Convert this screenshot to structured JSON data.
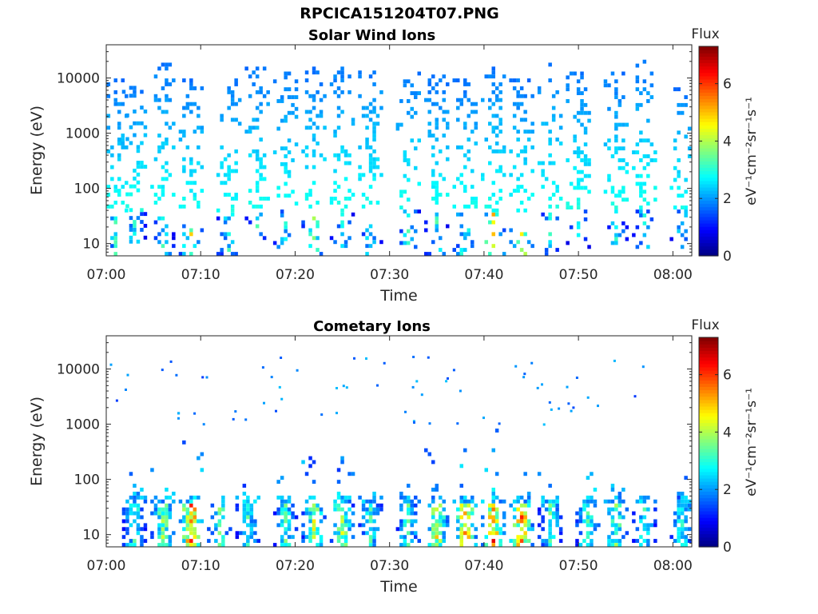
{
  "figure": {
    "filename_title": "RPCICA151204T07.PNG"
  },
  "colorbar": {
    "label": "Flux",
    "unit": "eV⁻¹cm⁻²sr⁻¹s⁻¹",
    "ticks": [
      "0",
      "2",
      "4",
      "6"
    ],
    "range": [
      0,
      7.3
    ],
    "colormap": "jet"
  },
  "chart_data": [
    {
      "type": "heatmap",
      "title": "Solar Wind Ions",
      "xlabel": "Time",
      "ylabel": "Energy (eV)",
      "x_ticks": [
        "07:00",
        "07:10",
        "07:20",
        "07:30",
        "07:40",
        "07:50",
        "08:00"
      ],
      "x_range": [
        "07:00",
        "08:02"
      ],
      "y_ticks": [
        "10",
        "100",
        "1000",
        "10000"
      ],
      "y_scale": "log",
      "y_range": [
        6,
        40000
      ],
      "z_label": "Flux",
      "z_range": [
        0,
        7.3
      ],
      "description_of_data": "sparse speckled counts between ~6 eV and ~20000 eV, mostly in vertical bursts; values 2-3 typical, higher (4-6) near 10-30 eV at 07:09, 07:40-07:42, 07:44",
      "bursts": [
        {
          "time": "07:01",
          "emin": 6,
          "emax": 9000,
          "peak": 3.4
        },
        {
          "time": "07:03",
          "emin": 10,
          "emax": 7000,
          "peak": 3.2
        },
        {
          "time": "07:06",
          "emin": 6,
          "emax": 18000,
          "peak": 3.3
        },
        {
          "time": "07:09",
          "emin": 6,
          "emax": 9000,
          "peak": 5.0
        },
        {
          "time": "07:13",
          "emin": 6,
          "emax": 10000,
          "peak": 3.5
        },
        {
          "time": "07:16",
          "emin": 6,
          "emax": 15000,
          "peak": 3.4
        },
        {
          "time": "07:19",
          "emin": 8,
          "emax": 12000,
          "peak": 3.2
        },
        {
          "time": "07:22",
          "emin": 6,
          "emax": 14000,
          "peak": 4.2
        },
        {
          "time": "07:25",
          "emin": 6,
          "emax": 20000,
          "peak": 3.5
        },
        {
          "time": "07:28",
          "emin": 6,
          "emax": 16000,
          "peak": 3.3
        },
        {
          "time": "07:32",
          "emin": 8,
          "emax": 12000,
          "peak": 3.4
        },
        {
          "time": "07:35",
          "emin": 6,
          "emax": 10000,
          "peak": 3.5
        },
        {
          "time": "07:38",
          "emin": 6,
          "emax": 9000,
          "peak": 3.8
        },
        {
          "time": "07:41",
          "emin": 6,
          "emax": 15000,
          "peak": 5.8
        },
        {
          "time": "07:44",
          "emin": 6,
          "emax": 10000,
          "peak": 5.2
        },
        {
          "time": "07:47",
          "emin": 6,
          "emax": 17000,
          "peak": 3.2
        },
        {
          "time": "07:50",
          "emin": 8,
          "emax": 15000,
          "peak": 3.0
        },
        {
          "time": "07:54",
          "emin": 8,
          "emax": 12000,
          "peak": 3.2
        },
        {
          "time": "07:57",
          "emin": 8,
          "emax": 20000,
          "peak": 3.1
        },
        {
          "time": "08:01",
          "emin": 8,
          "emax": 6000,
          "peak": 3.2
        }
      ]
    },
    {
      "type": "heatmap",
      "title": "Cometary Ions",
      "xlabel": "Time",
      "ylabel": "Energy (eV)",
      "x_ticks": [
        "07:00",
        "07:10",
        "07:20",
        "07:30",
        "07:40",
        "07:50",
        "08:00"
      ],
      "x_range": [
        "07:00",
        "08:02"
      ],
      "y_ticks": [
        "10",
        "100",
        "1000",
        "10000"
      ],
      "y_scale": "log",
      "y_range": [
        6,
        40000
      ],
      "z_label": "Flux",
      "z_range": [
        0,
        7.3
      ],
      "description_of_data": "low energy (<50 eV) intense vertical bursts (peak 6-7 at 07:09, 07:38, 07:41, 07:44), scattered blue points 100-1000 eV, sparse dots above 1000 eV",
      "bursts": [
        {
          "time": "07:03",
          "emin": 6,
          "emax": 300,
          "peak": 3.8
        },
        {
          "time": "07:06",
          "emin": 6,
          "emax": 250,
          "peak": 4.6
        },
        {
          "time": "07:09",
          "emin": 6,
          "emax": 500,
          "peak": 6.8
        },
        {
          "time": "07:12",
          "emin": 6,
          "emax": 150,
          "peak": 4.2
        },
        {
          "time": "07:15",
          "emin": 6,
          "emax": 120,
          "peak": 3.6
        },
        {
          "time": "07:19",
          "emin": 6,
          "emax": 200,
          "peak": 3.8
        },
        {
          "time": "07:22",
          "emin": 6,
          "emax": 250,
          "peak": 4.8
        },
        {
          "time": "07:25",
          "emin": 6,
          "emax": 300,
          "peak": 5.0
        },
        {
          "time": "07:28",
          "emin": 6,
          "emax": 200,
          "peak": 3.6
        },
        {
          "time": "07:32",
          "emin": 6,
          "emax": 150,
          "peak": 3.8
        },
        {
          "time": "07:35",
          "emin": 6,
          "emax": 400,
          "peak": 5.2
        },
        {
          "time": "07:38",
          "emin": 6,
          "emax": 500,
          "peak": 6.4
        },
        {
          "time": "07:41",
          "emin": 6,
          "emax": 800,
          "peak": 6.6
        },
        {
          "time": "07:44",
          "emin": 6,
          "emax": 400,
          "peak": 6.6
        },
        {
          "time": "07:47",
          "emin": 6,
          "emax": 150,
          "peak": 3.8
        },
        {
          "time": "07:51",
          "emin": 6,
          "emax": 200,
          "peak": 4.4
        },
        {
          "time": "07:54",
          "emin": 6,
          "emax": 150,
          "peak": 4.4
        },
        {
          "time": "07:57",
          "emin": 6,
          "emax": 120,
          "peak": 3.6
        },
        {
          "time": "08:01",
          "emin": 6,
          "emax": 100,
          "peak": 3.6
        }
      ]
    }
  ]
}
